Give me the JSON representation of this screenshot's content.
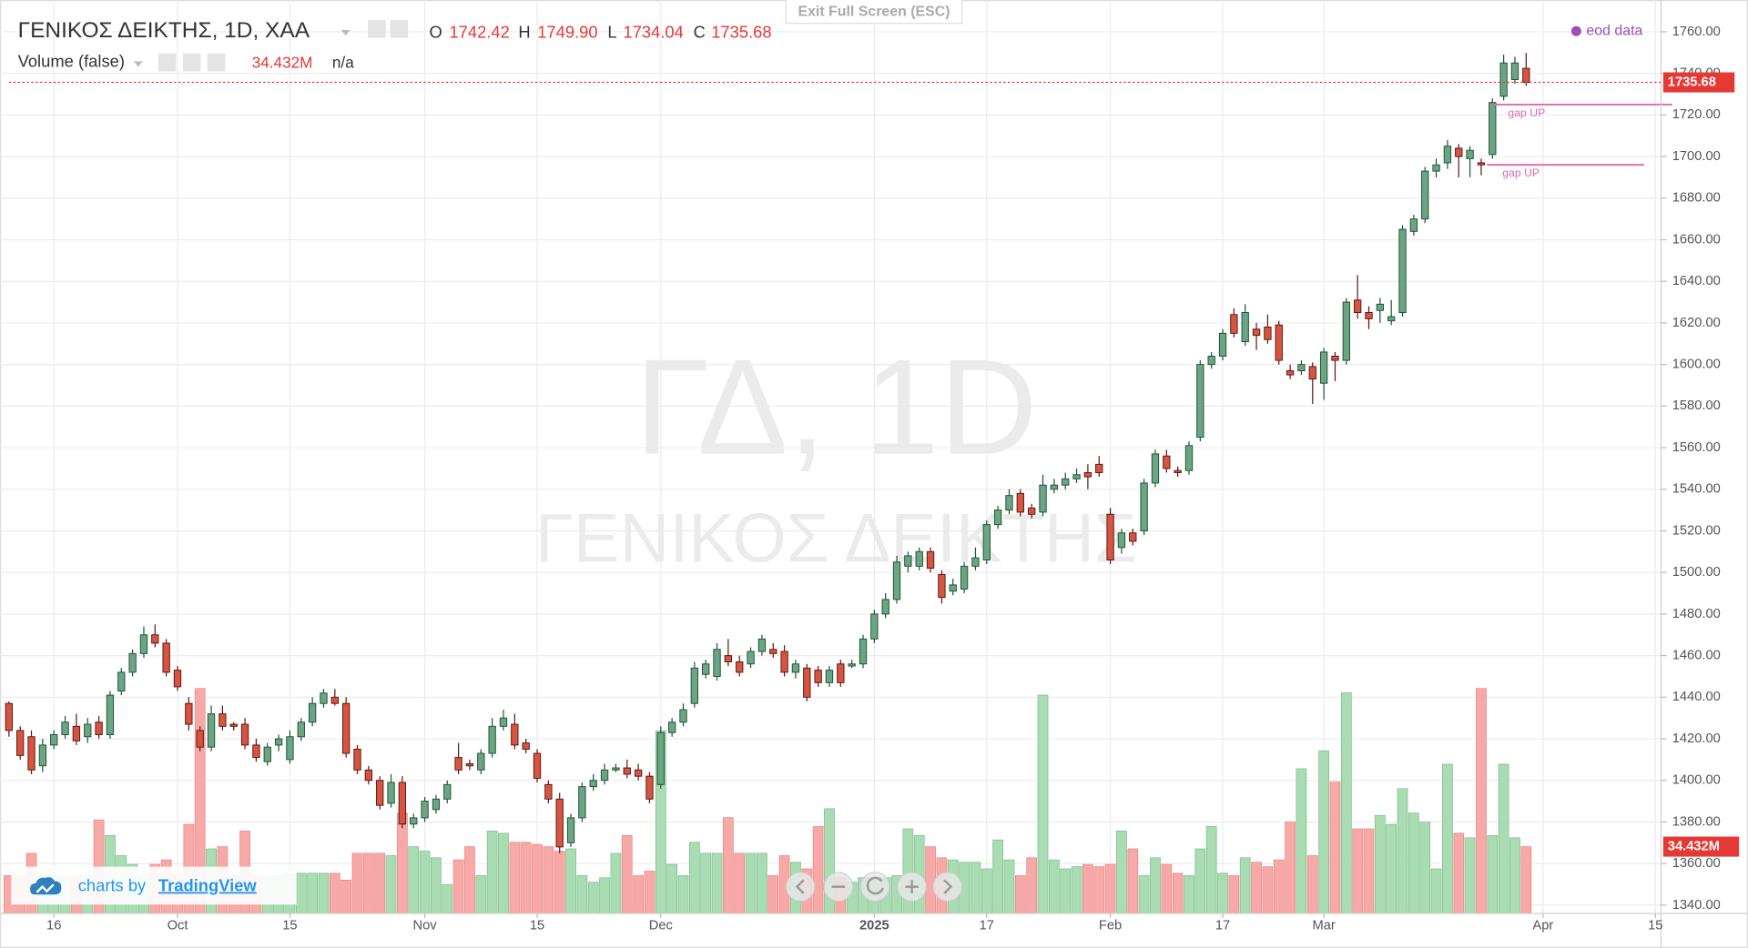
{
  "chart_data": {
    "type": "candlestick",
    "title": "ΓΕΝΙΚΟΣ ΔΕΙΚΤΗΣ, 1D, ΧΑΑ",
    "legend": {
      "ohlc": [
        {
          "key": "O",
          "value": "1742.42"
        },
        {
          "key": "H",
          "value": "1749.90"
        },
        {
          "key": "L",
          "value": "1734.04"
        },
        {
          "key": "C",
          "value": "1735.68"
        }
      ],
      "volume_title": "Volume (false)",
      "volume_value": "34.432M",
      "volume_extra": "n/a"
    },
    "watermark": [
      "ΓΔ, 1D",
      "ΓΕΝΙΚΟΣ ΔΕΙΚΤΗΣ"
    ],
    "colors": {
      "up": "#6ba583",
      "down": "#d75442",
      "up_border": "#225437",
      "down_border": "#5b1a13",
      "volume_up": "#a9dcb3",
      "volume_down": "#f7a9a7",
      "last": "#e53935",
      "annotation": "#e066b8"
    },
    "grid": true,
    "xlim": [
      0,
      147
    ],
    "xticks": [
      {
        "value": 4,
        "label": "16"
      },
      {
        "value": 15,
        "label": "Oct"
      },
      {
        "value": 25,
        "label": "15"
      },
      {
        "value": 37,
        "label": "Nov"
      },
      {
        "value": 47,
        "label": "15"
      },
      {
        "value": 58,
        "label": "Dec"
      },
      {
        "value": 77,
        "label": "2025"
      },
      {
        "value": 87,
        "label": "17"
      },
      {
        "value": 98,
        "label": "Feb"
      },
      {
        "value": 108,
        "label": "17"
      },
      {
        "value": 117,
        "label": "Mar"
      },
      {
        "value": 136.5,
        "label": "Apr"
      },
      {
        "value": 146.5,
        "label": "15"
      }
    ],
    "ylim": [
      1336,
      1771
    ],
    "yticks": [
      {
        "value": 1340,
        "label": "1340.00"
      },
      {
        "value": 1360,
        "label": "1360.00"
      },
      {
        "value": 1380,
        "label": "1380.00"
      },
      {
        "value": 1400,
        "label": "1400.00"
      },
      {
        "value": 1420,
        "label": "1420.00"
      },
      {
        "value": 1440,
        "label": "1440.00"
      },
      {
        "value": 1460,
        "label": "1460.00"
      },
      {
        "value": 1480,
        "label": "1480.00"
      },
      {
        "value": 1500,
        "label": "1500.00"
      },
      {
        "value": 1520,
        "label": "1520.00"
      },
      {
        "value": 1540,
        "label": "1540.00"
      },
      {
        "value": 1560,
        "label": "1560.00"
      },
      {
        "value": 1580,
        "label": "1580.00"
      },
      {
        "value": 1600,
        "label": "1600.00"
      },
      {
        "value": 1620,
        "label": "1620.00"
      },
      {
        "value": 1640,
        "label": "1640.00"
      },
      {
        "value": 1660,
        "label": "1660.00"
      },
      {
        "value": 1680,
        "label": "1680.00"
      },
      {
        "value": 1700,
        "label": "1700.00"
      },
      {
        "value": 1720,
        "label": "1720.00"
      },
      {
        "value": 1740,
        "label": "1740.00"
      },
      {
        "value": 1760,
        "label": "1760.00"
      }
    ],
    "volume_ylim": [
      0,
      466
    ],
    "last_price": {
      "value": 1735.68,
      "label": "1735.68"
    },
    "last_volume": 34.432,
    "open": [
      1437,
      1424,
      1421,
      1407,
      1417,
      1422,
      1426,
      1421,
      1428,
      1422,
      1443,
      1452,
      1461,
      1470,
      1466,
      1453,
      1437,
      1424,
      1416,
      1432,
      1427,
      1427,
      1417,
      1409,
      1417,
      1410,
      1421,
      1428,
      1437,
      1440,
      1437,
      1415,
      1405,
      1400,
      1389,
      1399,
      1379,
      1382,
      1386,
      1391,
      1411,
      1408,
      1405,
      1413,
      1426,
      1427,
      1418,
      1413,
      1398,
      1391,
      1370,
      1382,
      1397,
      1400,
      1405,
      1406,
      1405,
      1402,
      1398,
      1423,
      1428,
      1437,
      1451,
      1450,
      1460,
      1457,
      1456,
      1462,
      1463,
      1462,
      1452,
      1454,
      1453,
      1447,
      1456,
      1455,
      1456,
      1468,
      1480,
      1487,
      1503,
      1503,
      1510,
      1499,
      1491,
      1492,
      1503,
      1506,
      1523,
      1530,
      1538,
      1531,
      1529,
      1540,
      1542,
      1545,
      1548,
      1552,
      1528,
      1512,
      1519,
      1520,
      1543,
      1556,
      1549,
      1549,
      1565,
      1600,
      1604,
      1624,
      1611,
      1617,
      1618,
      1619,
      1597,
      1597,
      1599,
      1591,
      1604,
      1602,
      1631,
      1625,
      1626,
      1621,
      1625,
      1664,
      1670,
      1693,
      1697,
      1704,
      1699,
      1697,
      1701,
      1729,
      1737,
      1742.42
    ],
    "high": [
      1438,
      1426,
      1424,
      1420,
      1424,
      1431,
      1432,
      1430,
      1431,
      1443,
      1454,
      1463,
      1474,
      1475,
      1468,
      1455,
      1440,
      1426,
      1436,
      1436,
      1428,
      1430,
      1420,
      1418,
      1422,
      1424,
      1430,
      1440,
      1444,
      1444,
      1440,
      1417,
      1407,
      1402,
      1403,
      1402,
      1384,
      1392,
      1393,
      1400,
      1418,
      1410,
      1415,
      1430,
      1434,
      1432,
      1420,
      1415,
      1400,
      1394,
      1384,
      1399,
      1403,
      1408,
      1408,
      1410,
      1408,
      1404,
      1426,
      1430,
      1437,
      1457,
      1458,
      1466,
      1468,
      1460,
      1464,
      1470,
      1466,
      1465,
      1458,
      1456,
      1455,
      1455,
      1458,
      1458,
      1470,
      1482,
      1490,
      1508,
      1510,
      1512,
      1512,
      1501,
      1497,
      1505,
      1512,
      1525,
      1532,
      1540,
      1540,
      1533,
      1547,
      1545,
      1548,
      1550,
      1552,
      1556,
      1531,
      1521,
      1521,
      1545,
      1559,
      1559,
      1551,
      1563,
      1602,
      1606,
      1617,
      1627,
      1629,
      1620,
      1624,
      1621,
      1600,
      1602,
      1601,
      1608,
      1606,
      1632,
      1643,
      1628,
      1632,
      1631,
      1667,
      1672,
      1695,
      1699,
      1708,
      1706,
      1705,
      1699,
      1728,
      1749,
      1748,
      1749.9
    ],
    "low": [
      1421,
      1410,
      1403,
      1404,
      1415,
      1420,
      1417,
      1418,
      1420,
      1420,
      1441,
      1450,
      1459,
      1464,
      1450,
      1443,
      1424,
      1414,
      1414,
      1424,
      1424,
      1415,
      1409,
      1407,
      1414,
      1408,
      1419,
      1426,
      1435,
      1436,
      1411,
      1403,
      1398,
      1386,
      1387,
      1377,
      1377,
      1380,
      1384,
      1389,
      1403,
      1405,
      1403,
      1411,
      1424,
      1415,
      1413,
      1399,
      1389,
      1365,
      1368,
      1380,
      1395,
      1398,
      1404,
      1401,
      1400,
      1389,
      1396,
      1421,
      1426,
      1435,
      1449,
      1448,
      1455,
      1450,
      1454,
      1460,
      1459,
      1450,
      1449,
      1438,
      1445,
      1445,
      1445,
      1454,
      1454,
      1466,
      1478,
      1485,
      1500,
      1501,
      1500,
      1485,
      1489,
      1490,
      1501,
      1504,
      1521,
      1528,
      1527,
      1526,
      1527,
      1538,
      1540,
      1543,
      1540,
      1546,
      1504,
      1509,
      1513,
      1518,
      1541,
      1548,
      1546,
      1547,
      1563,
      1598,
      1602,
      1613,
      1609,
      1607,
      1610,
      1600,
      1593,
      1595,
      1581,
      1583,
      1592,
      1600,
      1622,
      1617,
      1620,
      1619,
      1623,
      1662,
      1668,
      1690,
      1694,
      1690,
      1690,
      1691,
      1699,
      1727,
      1735,
      1734.04
    ],
    "close": [
      1424,
      1412,
      1405,
      1417,
      1422,
      1428,
      1419,
      1427,
      1422,
      1441,
      1452,
      1461,
      1470,
      1466,
      1452,
      1445,
      1427,
      1416,
      1432,
      1426,
      1426,
      1417,
      1411,
      1416,
      1420,
      1421,
      1428,
      1437,
      1442,
      1437,
      1413,
      1405,
      1400,
      1388,
      1399,
      1379,
      1382,
      1390,
      1391,
      1398,
      1405,
      1407,
      1413,
      1426,
      1430,
      1417,
      1415,
      1401,
      1391,
      1368,
      1382,
      1397,
      1400,
      1405,
      1406,
      1403,
      1402,
      1391,
      1423,
      1428,
      1434,
      1454,
      1456,
      1463,
      1457,
      1452,
      1462,
      1468,
      1461,
      1452,
      1456,
      1440,
      1447,
      1453,
      1447,
      1456,
      1468,
      1480,
      1487,
      1505,
      1508,
      1510,
      1502,
      1488,
      1494,
      1503,
      1507,
      1523,
      1530,
      1537,
      1529,
      1528,
      1542,
      1542,
      1545,
      1547,
      1546,
      1548,
      1506,
      1519,
      1515,
      1543,
      1557,
      1550,
      1548,
      1561,
      1600,
      1604,
      1615,
      1615,
      1625,
      1614,
      1612,
      1602,
      1595,
      1600,
      1593,
      1606,
      1602,
      1630,
      1625,
      1622,
      1629,
      1623,
      1665,
      1670,
      1693,
      1696,
      1705,
      1700,
      1703,
      1696,
      1726,
      1745,
      1745,
      1735.68
    ],
    "volume": [
      19.5,
      19.5,
      31.0,
      19.5,
      19.5,
      19.5,
      19.5,
      19.5,
      48.2,
      40.2,
      29.8,
      25.3,
      19.5,
      25.3,
      27.6,
      19.5,
      45.9,
      115.9,
      33.3,
      34.4,
      19.5,
      42.5,
      19.5,
      19.5,
      19.5,
      20.7,
      20.7,
      20.7,
      20.7,
      20.7,
      17.2,
      31.0,
      31.0,
      31.0,
      29.8,
      51.7,
      34.4,
      32.1,
      28.7,
      14.9,
      27.6,
      34.4,
      19.5,
      42.5,
      41.3,
      36.7,
      36.7,
      35.6,
      34.4,
      32.1,
      33.3,
      19.5,
      16.1,
      18.4,
      31.0,
      40.2,
      19.5,
      21.8,
      94.1,
      25.3,
      19.5,
      36.7,
      31.0,
      31.0,
      49.4,
      31.0,
      31.0,
      31.0,
      19.5,
      29.8,
      26.4,
      23.0,
      44.8,
      54.0,
      18.4,
      16.1,
      18.4,
      18.4,
      18.4,
      19.5,
      43.6,
      40.2,
      34.4,
      28.7,
      27.6,
      26.4,
      26.4,
      23.0,
      37.9,
      27.6,
      19.5,
      28.7,
      112.5,
      27.6,
      23.0,
      24.1,
      25.3,
      24.1,
      25.3,
      42.5,
      33.3,
      19.5,
      28.7,
      25.3,
      20.7,
      19.5,
      33.3,
      44.8,
      20.7,
      19.5,
      28.7,
      26.4,
      24.1,
      27.6,
      47.1,
      74.6,
      29.8,
      83.8,
      67.7,
      113.7,
      43.6,
      43.6,
      50.5,
      45.9,
      64.3,
      51.7,
      47.1,
      23.0,
      76.9,
      41.3,
      39.0,
      115.9,
      40.2,
      76.9,
      39.0,
      34.432
    ],
    "annotations": [
      {
        "text": "gap UP",
        "y": 1725,
        "x0": 132,
        "x1": 148
      },
      {
        "text": "gap UP",
        "y": 1696,
        "x0": 131.5,
        "x1": 145.5
      }
    ]
  },
  "ui": {
    "exit_fullscreen": "Exit Full Screen (ESC)",
    "source": "eod data",
    "credit_prefix": "charts by",
    "credit_brand": "TradingView"
  }
}
